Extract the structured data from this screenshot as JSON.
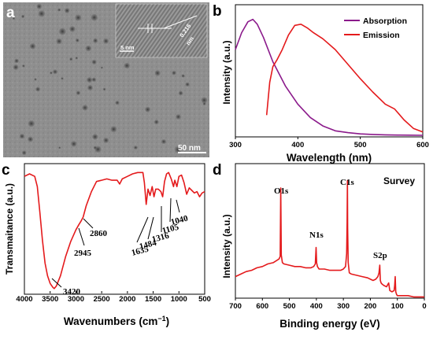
{
  "panel_labels": {
    "a": "a",
    "b": "b",
    "c": "c",
    "d": "d"
  },
  "tem": {
    "scale_main": "50 nm",
    "scale_inset": "5 nm",
    "lattice_spacing": "0.216",
    "lattice_unit": "nm"
  },
  "chart_data": [
    {
      "panel": "b",
      "type": "line",
      "title": "",
      "xlabel": "Wavelength (nm)",
      "ylabel": "Intensity (a.u.)",
      "xlim": [
        300,
        600
      ],
      "xticks": [
        300,
        400,
        500,
        600
      ],
      "legend_position": "top-right",
      "series": [
        {
          "name": "Absorption",
          "color": "#8b1a8b",
          "x": [
            300,
            310,
            320,
            328,
            335,
            345,
            360,
            380,
            400,
            420,
            440,
            460,
            480,
            500,
            520,
            540,
            560,
            580,
            600
          ],
          "y": [
            0.72,
            0.86,
            0.95,
            0.97,
            0.93,
            0.82,
            0.62,
            0.42,
            0.27,
            0.16,
            0.09,
            0.05,
            0.035,
            0.025,
            0.02,
            0.017,
            0.015,
            0.014,
            0.013
          ]
        },
        {
          "name": "Emission",
          "color": "#e41a1c",
          "x": [
            350,
            355,
            360,
            367,
            375,
            385,
            395,
            405,
            415,
            425,
            440,
            460,
            480,
            500,
            520,
            540,
            555,
            570,
            585,
            600
          ],
          "y": [
            0.18,
            0.45,
            0.58,
            0.64,
            0.72,
            0.84,
            0.92,
            0.93,
            0.9,
            0.86,
            0.81,
            0.72,
            0.6,
            0.48,
            0.37,
            0.27,
            0.23,
            0.14,
            0.07,
            0.04
          ]
        }
      ]
    },
    {
      "panel": "c",
      "type": "line",
      "title": "",
      "xlabel": "Wavenumbers (cm",
      "xlabel_sup": "−1",
      "xlabel_close": ")",
      "ylabel": "Transmaitance (a.u.)",
      "xlim": [
        4000,
        500
      ],
      "xticks": [
        4000,
        3500,
        3000,
        2500,
        2000,
        1500,
        1000,
        500
      ],
      "annotations": [
        "3420",
        "2945",
        "2860",
        "1635",
        "1484",
        "1316",
        "1105",
        "1040"
      ],
      "series": [
        {
          "name": "",
          "color": "#e41a1c",
          "x": [
            4000,
            3900,
            3800,
            3750,
            3700,
            3650,
            3600,
            3550,
            3500,
            3450,
            3420,
            3380,
            3300,
            3200,
            3100,
            3000,
            2945,
            2900,
            2860,
            2800,
            2700,
            2600,
            2500,
            2400,
            2300,
            2200,
            2150,
            2100,
            2000,
            1900,
            1800,
            1700,
            1670,
            1635,
            1600,
            1560,
            1520,
            1484,
            1450,
            1400,
            1350,
            1316,
            1280,
            1240,
            1200,
            1150,
            1105,
            1080,
            1040,
            1000,
            950,
            900,
            850,
            800,
            750,
            700,
            650,
            600,
            550,
            500
          ],
          "y": [
            0.9,
            0.92,
            0.9,
            0.82,
            0.62,
            0.4,
            0.22,
            0.12,
            0.06,
            0.03,
            0.02,
            0.04,
            0.12,
            0.27,
            0.39,
            0.48,
            0.52,
            0.55,
            0.58,
            0.67,
            0.78,
            0.86,
            0.87,
            0.88,
            0.87,
            0.87,
            0.84,
            0.88,
            0.9,
            0.92,
            0.93,
            0.93,
            0.85,
            0.68,
            0.8,
            0.75,
            0.82,
            0.74,
            0.8,
            0.8,
            0.78,
            0.74,
            0.86,
            0.92,
            0.93,
            0.88,
            0.82,
            0.87,
            0.82,
            0.9,
            0.91,
            0.85,
            0.76,
            0.81,
            0.79,
            0.77,
            0.78,
            0.74,
            0.77,
            0.78
          ]
        }
      ]
    },
    {
      "panel": "d",
      "type": "line",
      "title": "",
      "xlabel": "Binding energy (eV)",
      "ylabel": "Intensity (a.u.)",
      "xlim": [
        700,
        0
      ],
      "xticks": [
        700,
        600,
        500,
        400,
        300,
        200,
        100,
        0
      ],
      "legend_text": "Survey",
      "annotations": [
        {
          "label": "O1s",
          "x": 532
        },
        {
          "label": "N1s",
          "x": 400
        },
        {
          "label": "C1s",
          "x": 285
        },
        {
          "label": "S2p",
          "x": 164
        }
      ],
      "series": [
        {
          "name": "",
          "color": "#e41a1c",
          "x": [
            700,
            680,
            660,
            640,
            620,
            600,
            580,
            560,
            545,
            538,
            534,
            532,
            530,
            526,
            520,
            500,
            480,
            460,
            440,
            420,
            410,
            404,
            401,
            399,
            396,
            390,
            370,
            350,
            330,
            310,
            300,
            292,
            288,
            286,
            285,
            284,
            282,
            278,
            270,
            250,
            230,
            210,
            200,
            190,
            180,
            172,
            168,
            165,
            163,
            160,
            156,
            150,
            140,
            132,
            128,
            120,
            112,
            110,
            108,
            106,
            103,
            100,
            90,
            75,
            60,
            40,
            20,
            0
          ],
          "y": [
            0.17,
            0.19,
            0.21,
            0.22,
            0.24,
            0.25,
            0.27,
            0.28,
            0.3,
            0.31,
            0.33,
            0.87,
            0.34,
            0.28,
            0.27,
            0.26,
            0.25,
            0.25,
            0.24,
            0.24,
            0.25,
            0.27,
            0.4,
            0.28,
            0.25,
            0.23,
            0.23,
            0.22,
            0.22,
            0.22,
            0.23,
            0.25,
            0.35,
            0.6,
            0.93,
            0.55,
            0.28,
            0.2,
            0.19,
            0.18,
            0.17,
            0.16,
            0.15,
            0.14,
            0.15,
            0.17,
            0.2,
            0.26,
            0.14,
            0.12,
            0.11,
            0.1,
            0.09,
            0.12,
            0.06,
            0.05,
            0.06,
            0.1,
            0.17,
            0.05,
            0.03,
            0.02,
            0.02,
            0.02,
            0.02,
            0.01,
            0.01,
            0.01
          ]
        }
      ]
    }
  ]
}
